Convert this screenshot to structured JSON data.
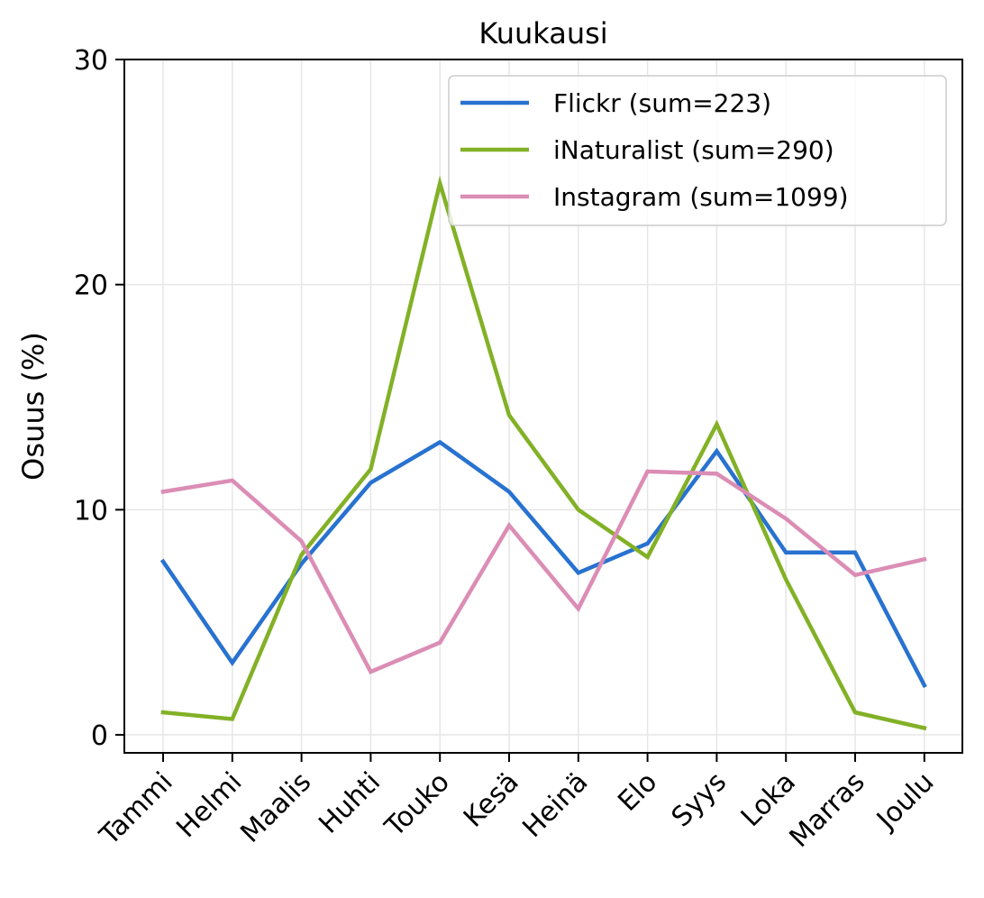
{
  "chart_data": {
    "type": "line",
    "title": "Kuukausi",
    "xlabel": "",
    "ylabel": "Osuus (%)",
    "categories": [
      "Tammi",
      "Helmi",
      "Maalis",
      "Huhti",
      "Touko",
      "Kesä",
      "Heinä",
      "Elo",
      "Syys",
      "Loka",
      "Marras",
      "Joulu"
    ],
    "ylim": [
      -0.8,
      30
    ],
    "yticks": [
      0,
      10,
      20,
      30
    ],
    "grid": true,
    "legend_position": "top-right",
    "series": [
      {
        "name": "Flickr (sum=223)",
        "color": "#2872d0",
        "values": [
          7.7,
          3.2,
          7.6,
          11.2,
          13.0,
          10.8,
          7.2,
          8.5,
          12.6,
          8.1,
          8.1,
          2.2
        ]
      },
      {
        "name": "iNaturalist (sum=290)",
        "color": "#82b126",
        "values": [
          1.0,
          0.7,
          8.0,
          11.8,
          24.5,
          14.2,
          10.0,
          7.9,
          13.8,
          6.9,
          1.0,
          0.3
        ]
      },
      {
        "name": "Instagram (sum=1099)",
        "color": "#db8db5",
        "values": [
          10.8,
          11.3,
          8.6,
          2.8,
          4.1,
          9.3,
          5.6,
          11.7,
          11.6,
          9.6,
          7.1,
          7.8
        ]
      }
    ]
  }
}
